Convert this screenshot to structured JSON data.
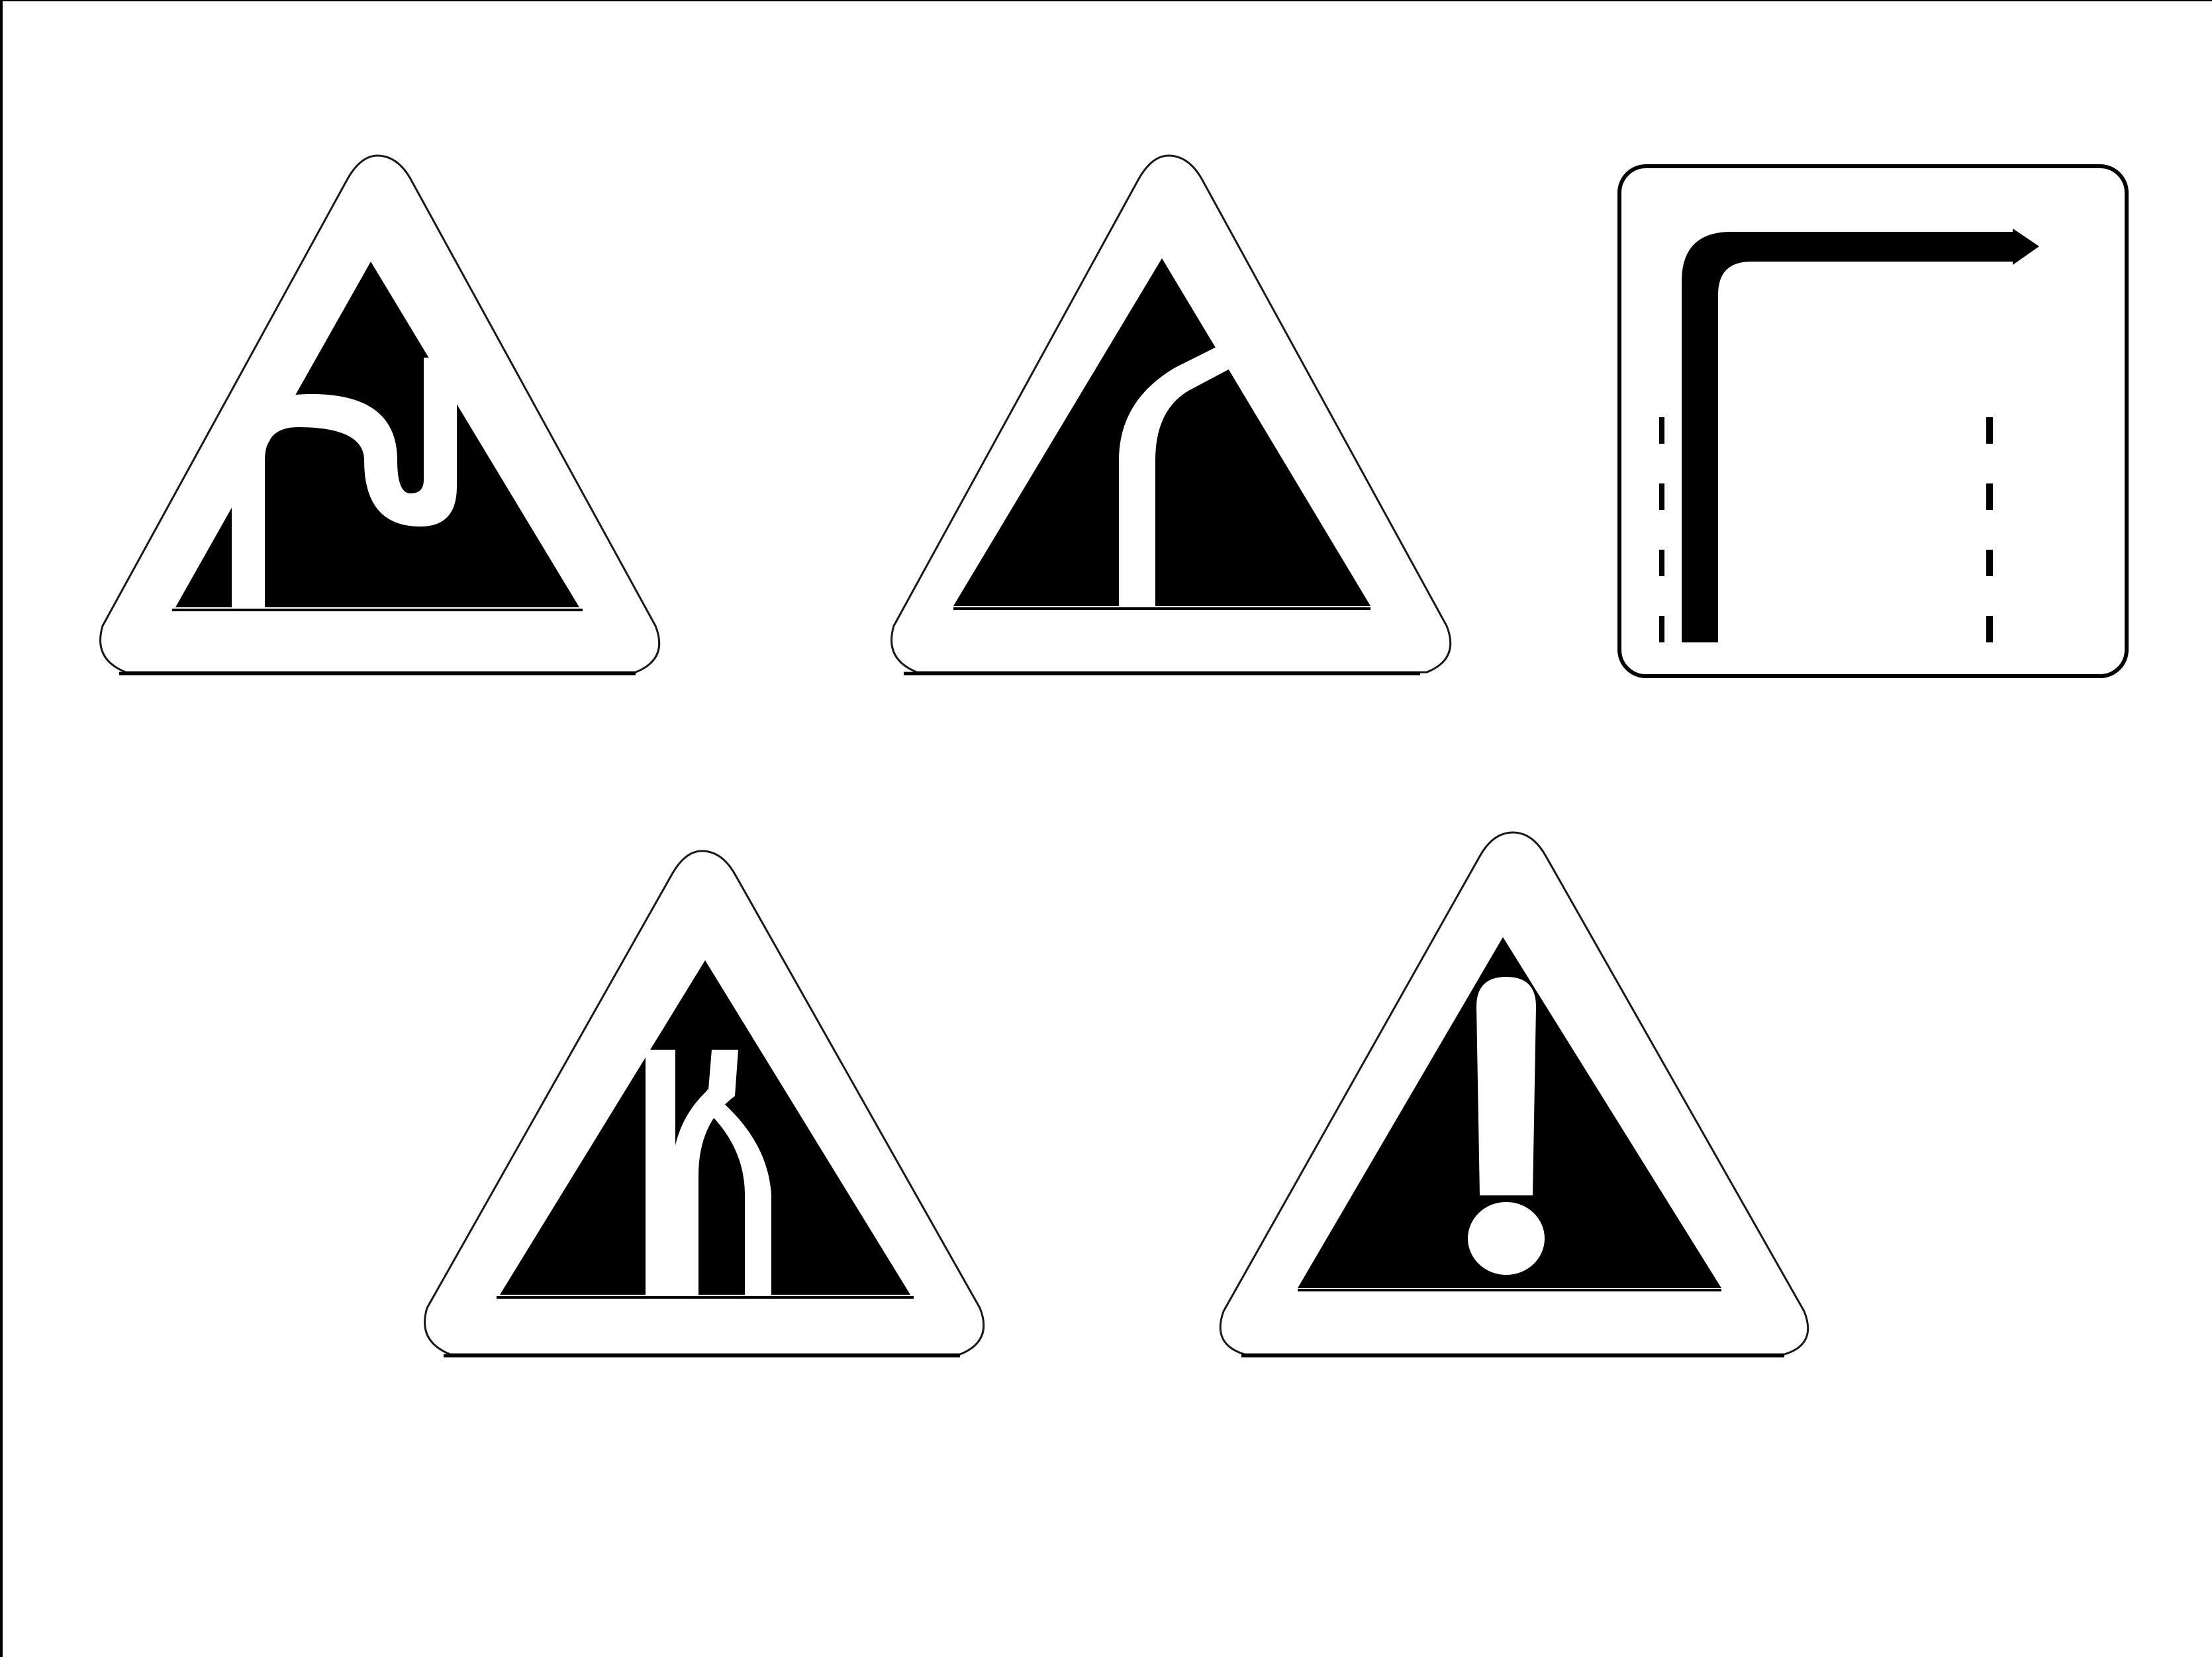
{
  "colors": {
    "background": "#ffffff",
    "ink": "#000000"
  },
  "signs": [
    {
      "kind": "warning-triangle",
      "symbol": "double-bend-icon"
    },
    {
      "kind": "warning-triangle",
      "symbol": "road-fork-icon"
    },
    {
      "kind": "information-square",
      "symbol": "turn-right-lane-icon"
    },
    {
      "kind": "warning-triangle",
      "symbol": "road-narrows-icon"
    },
    {
      "kind": "warning-triangle",
      "symbol": "exclamation-icon"
    }
  ]
}
